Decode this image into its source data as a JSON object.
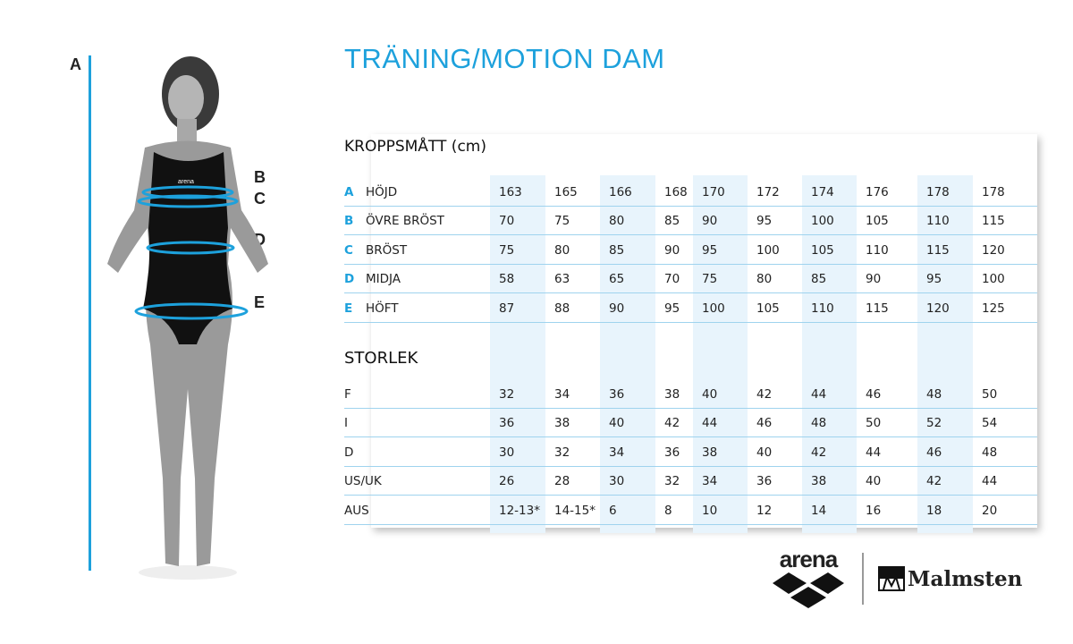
{
  "title": "TRÄNING/MOTION  DAM",
  "body_section": "KROPPSMÅTT (cm)",
  "size_section": "STORLEK",
  "accent_color": "#1da1dc",
  "figure_labels": [
    "A",
    "B",
    "C",
    "D",
    "E"
  ],
  "measurements": [
    {
      "letter": "A",
      "label": "HÖJD",
      "values": [
        "163",
        "165",
        "166",
        "168",
        "170",
        "172",
        "174",
        "176",
        "178",
        "178"
      ]
    },
    {
      "letter": "B",
      "label": "ÖVRE BRÖST",
      "values": [
        "70",
        "75",
        "80",
        "85",
        "90",
        "95",
        "100",
        "105",
        "110",
        "115"
      ]
    },
    {
      "letter": "C",
      "label": "BRÖST",
      "values": [
        "75",
        "80",
        "85",
        "90",
        "95",
        "100",
        "105",
        "110",
        "115",
        "120"
      ]
    },
    {
      "letter": "D",
      "label": "MIDJA",
      "values": [
        "58",
        "63",
        "65",
        "70",
        "75",
        "80",
        "85",
        "90",
        "95",
        "100"
      ]
    },
    {
      "letter": "E",
      "label": "HÖFT",
      "values": [
        "87",
        "88",
        "90",
        "95",
        "100",
        "105",
        "110",
        "115",
        "120",
        "125"
      ]
    }
  ],
  "sizes": [
    {
      "label": "F",
      "values": [
        "32",
        "34",
        "36",
        "38",
        "40",
        "42",
        "44",
        "46",
        "48",
        "50"
      ]
    },
    {
      "label": "I",
      "values": [
        "36",
        "38",
        "40",
        "42",
        "44",
        "46",
        "48",
        "50",
        "52",
        "54"
      ]
    },
    {
      "label": "D",
      "values": [
        "30",
        "32",
        "34",
        "36",
        "38",
        "40",
        "42",
        "44",
        "46",
        "48"
      ]
    },
    {
      "label": "US/UK",
      "values": [
        "26",
        "28",
        "30",
        "32",
        "34",
        "36",
        "38",
        "40",
        "42",
        "44"
      ]
    },
    {
      "label": "AUS",
      "values": [
        "12-13*",
        "14-15*",
        "6",
        "8",
        "10",
        "12",
        "14",
        "16",
        "18",
        "20"
      ]
    }
  ],
  "logos": {
    "arena": "arena",
    "malmsten": "Malmsten"
  }
}
